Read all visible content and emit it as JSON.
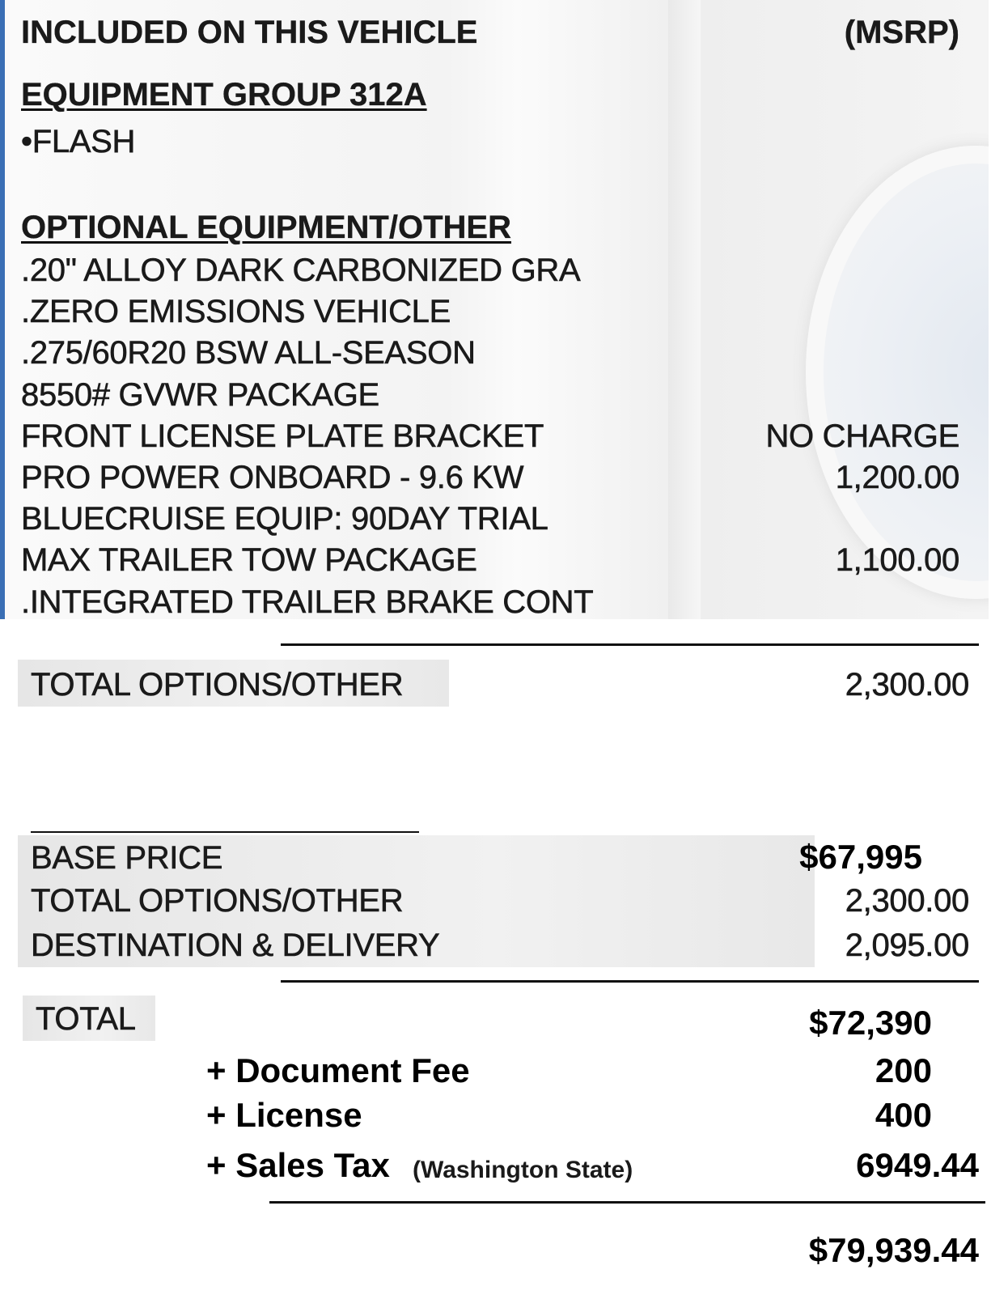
{
  "header": {
    "title": "INCLUDED ON THIS VEHICLE",
    "price_column": "(MSRP)"
  },
  "equipment_group": {
    "title": "EQUIPMENT GROUP 312A",
    "items": [
      "•FLASH"
    ]
  },
  "optional": {
    "title": "OPTIONAL EQUIPMENT/OTHER",
    "items": [
      {
        "label": ".20\" ALLOY DARK CARBONIZED GRA",
        "price": ""
      },
      {
        "label": ".ZERO EMISSIONS VEHICLE",
        "price": ""
      },
      {
        "label": ".275/60R20 BSW ALL-SEASON",
        "price": ""
      },
      {
        "label": "8550# GVWR PACKAGE",
        "price": ""
      },
      {
        "label": "FRONT LICENSE PLATE BRACKET",
        "price": "NO CHARGE"
      },
      {
        "label": "PRO POWER ONBOARD - 9.6 KW",
        "price": "1,200.00"
      },
      {
        "label": "BLUECRUISE EQUIP: 90DAY TRIAL",
        "price": ""
      },
      {
        "label": "MAX TRAILER TOW PACKAGE",
        "price": "1,100.00"
      },
      {
        "label": ".INTEGRATED TRAILER BRAKE CONT",
        "price": ""
      }
    ]
  },
  "total_options": {
    "label": "TOTAL OPTIONS/OTHER",
    "value": "2,300.00"
  },
  "summary": {
    "base_price": {
      "label": "BASE PRICE",
      "value": "$67,995"
    },
    "total_options": {
      "label": "TOTAL OPTIONS/OTHER",
      "value": "2,300.00"
    },
    "destination": {
      "label": "DESTINATION & DELIVERY",
      "value": "2,095.00"
    },
    "total": {
      "label": "TOTAL",
      "value": "$72,390"
    }
  },
  "fees": {
    "document_fee": {
      "label": "+ Document Fee",
      "value": "200"
    },
    "license": {
      "label": "+ License",
      "value": "400"
    },
    "sales_tax": {
      "label": "+ Sales Tax",
      "note": "(Washington State)",
      "value": "6949.44"
    }
  },
  "grand_total": "$79,939.44",
  "colors": {
    "accent_border": "#3a6fb5"
  }
}
